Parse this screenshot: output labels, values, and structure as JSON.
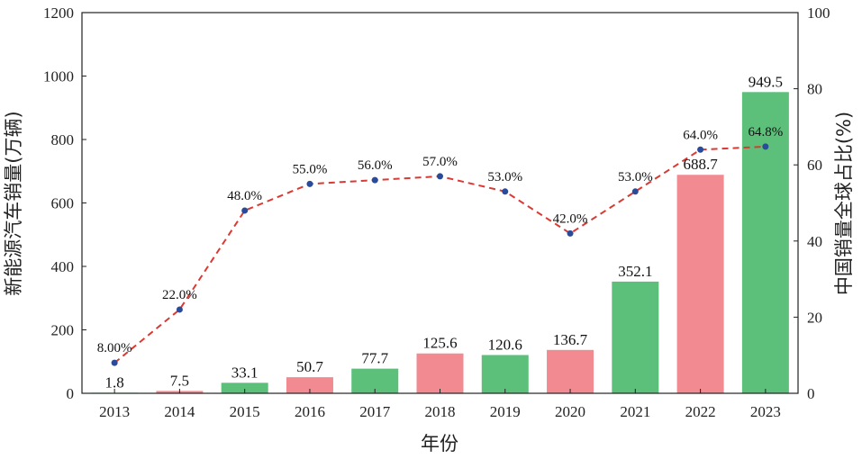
{
  "chart_data": {
    "type": "bar",
    "categories": [
      "2013",
      "2014",
      "2015",
      "2016",
      "2017",
      "2018",
      "2019",
      "2020",
      "2021",
      "2022",
      "2023"
    ],
    "series": [
      {
        "type": "bar",
        "axis": "left",
        "values": [
          1.8,
          7.5,
          33.1,
          50.7,
          77.7,
          125.6,
          120.6,
          136.7,
          352.1,
          688.7,
          949.5
        ],
        "value_labels": [
          "1.8",
          "7.5",
          "33.1",
          "50.7",
          "77.7",
          "125.6",
          "120.6",
          "136.7",
          "352.1",
          "688.7",
          "949.5"
        ],
        "colors": [
          "#5cbf7a",
          "#f28a92",
          "#5cbf7a",
          "#f28a92",
          "#5cbf7a",
          "#f28a92",
          "#5cbf7a",
          "#f28a92",
          "#5cbf7a",
          "#f28a92",
          "#5cbf7a"
        ]
      },
      {
        "type": "line",
        "axis": "right",
        "values": [
          8,
          22,
          48,
          55,
          56,
          57,
          53,
          42,
          53,
          64,
          64.8
        ],
        "value_labels": [
          "8.00%",
          "22.0%",
          "48.0%",
          "55.0%",
          "56.0%",
          "57.0%",
          "53.0%",
          "42.0%",
          "53.0%",
          "64.0%",
          "64.8%"
        ],
        "line_color": "#d93a33",
        "line_style": "dashed",
        "marker_color": "#2a4a9a"
      }
    ],
    "title": "",
    "xlabel": "年份",
    "ylabel": "新能源汽车销量(万辆)",
    "y2label": "中国销量全球占比(%)",
    "ylim": [
      0,
      1200
    ],
    "y2lim": [
      0,
      100
    ],
    "yticks": [
      "0",
      "200",
      "400",
      "600",
      "800",
      "1000",
      "1200"
    ],
    "y2ticks": [
      "0",
      "20",
      "40",
      "60",
      "80",
      "100"
    ],
    "grid": false,
    "legend": "none"
  }
}
